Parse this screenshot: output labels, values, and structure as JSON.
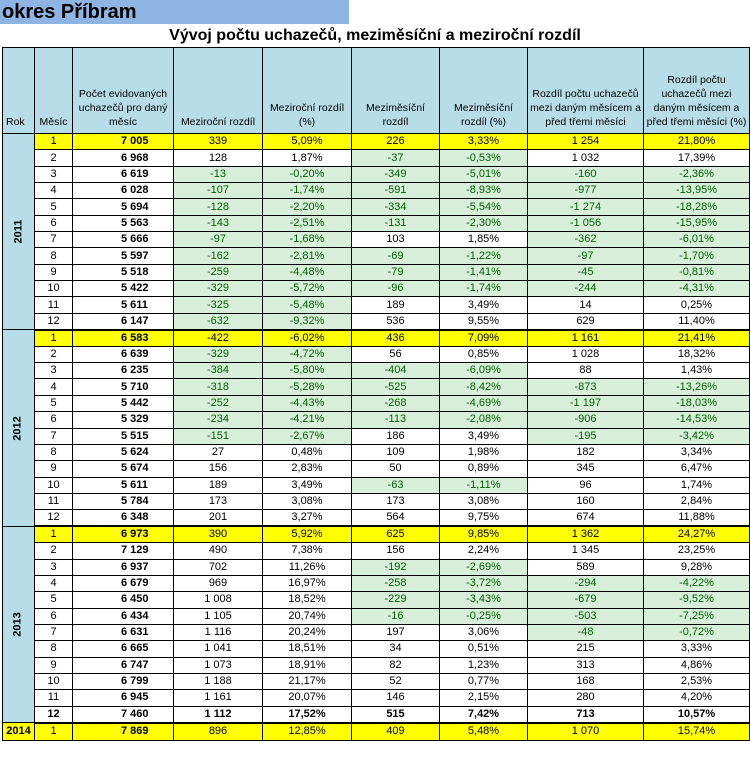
{
  "region_title": "okres Příbram",
  "title": "Vývoj počtu uchazečů, meziměsíční a meziroční rozdíl",
  "headers": {
    "rok": "Rok",
    "mesic": "Měsíc",
    "count": "Počet evidovaných uchazečů pro daný měsíc",
    "yoy": "Meziroční rozdíl",
    "yoy_pct": "Meziroční rozdíl (%)",
    "mom": "Meziměsíční rozdíl",
    "mom_pct": "Meziměsíční rozdíl (%)",
    "q3": "Rozdíl počtu uchazečů mezi daným měsícem a před třemi měsíci",
    "q3_pct": "Rozdíl počtu uchazečů mezi daným měsícem a před třemi měsíci (%)"
  },
  "colors": {
    "header_bg": "#b7dee8",
    "region_bg": "#8db4e2",
    "highlight_row": "#ffff00",
    "negative_bg": "#d8f0da",
    "negative_text": "#006100"
  },
  "years": [
    {
      "year": "2011",
      "rows": [
        [
          "1",
          "7 005",
          "339",
          "5,09%",
          "226",
          "3,33%",
          "1 254",
          "21,80%"
        ],
        [
          "2",
          "6 968",
          "128",
          "1,87%",
          "-37",
          "-0,53%",
          "1 032",
          "17,39%"
        ],
        [
          "3",
          "6 619",
          "-13",
          "-0,20%",
          "-349",
          "-5,01%",
          "-160",
          "-2,36%"
        ],
        [
          "4",
          "6 028",
          "-107",
          "-1,74%",
          "-591",
          "-8,93%",
          "-977",
          "-13,95%"
        ],
        [
          "5",
          "5 694",
          "-128",
          "-2,20%",
          "-334",
          "-5,54%",
          "-1 274",
          "-18,28%"
        ],
        [
          "6",
          "5 563",
          "-143",
          "-2,51%",
          "-131",
          "-2,30%",
          "-1 056",
          "-15,95%"
        ],
        [
          "7",
          "5 666",
          "-97",
          "-1,68%",
          "103",
          "1,85%",
          "-362",
          "-6,01%"
        ],
        [
          "8",
          "5 597",
          "-162",
          "-2,81%",
          "-69",
          "-1,22%",
          "-97",
          "-1,70%"
        ],
        [
          "9",
          "5 518",
          "-259",
          "-4,48%",
          "-79",
          "-1,41%",
          "-45",
          "-0,81%"
        ],
        [
          "10",
          "5 422",
          "-329",
          "-5,72%",
          "-96",
          "-1,74%",
          "-244",
          "-4,31%"
        ],
        [
          "11",
          "5 611",
          "-325",
          "-5,48%",
          "189",
          "3,49%",
          "14",
          "0,25%"
        ],
        [
          "12",
          "6 147",
          "-632",
          "-9,32%",
          "536",
          "9,55%",
          "629",
          "11,40%"
        ]
      ]
    },
    {
      "year": "2012",
      "rows": [
        [
          "1",
          "6 583",
          "-422",
          "-6,02%",
          "436",
          "7,09%",
          "1 161",
          "21,41%"
        ],
        [
          "2",
          "6 639",
          "-329",
          "-4,72%",
          "56",
          "0,85%",
          "1 028",
          "18,32%"
        ],
        [
          "3",
          "6 235",
          "-384",
          "-5,80%",
          "-404",
          "-6,09%",
          "88",
          "1,43%"
        ],
        [
          "4",
          "5 710",
          "-318",
          "-5,28%",
          "-525",
          "-8,42%",
          "-873",
          "-13,26%"
        ],
        [
          "5",
          "5 442",
          "-252",
          "-4,43%",
          "-268",
          "-4,69%",
          "-1 197",
          "-18,03%"
        ],
        [
          "6",
          "5 329",
          "-234",
          "-4,21%",
          "-113",
          "-2,08%",
          "-906",
          "-14,53%"
        ],
        [
          "7",
          "5 515",
          "-151",
          "-2,67%",
          "186",
          "3,49%",
          "-195",
          "-3,42%"
        ],
        [
          "8",
          "5 624",
          "27",
          "0,48%",
          "109",
          "1,98%",
          "182",
          "3,34%"
        ],
        [
          "9",
          "5 674",
          "156",
          "2,83%",
          "50",
          "0,89%",
          "345",
          "6,47%"
        ],
        [
          "10",
          "5 611",
          "189",
          "3,49%",
          "-63",
          "-1,11%",
          "96",
          "1,74%"
        ],
        [
          "11",
          "5 784",
          "173",
          "3,08%",
          "173",
          "3,08%",
          "160",
          "2,84%"
        ],
        [
          "12",
          "6 348",
          "201",
          "3,27%",
          "564",
          "9,75%",
          "674",
          "11,88%"
        ]
      ]
    },
    {
      "year": "2013",
      "rows": [
        [
          "1",
          "6 973",
          "390",
          "5,92%",
          "625",
          "9,85%",
          "1 362",
          "24,27%"
        ],
        [
          "2",
          "7 129",
          "490",
          "7,38%",
          "156",
          "2,24%",
          "1 345",
          "23,25%"
        ],
        [
          "3",
          "6 937",
          "702",
          "11,26%",
          "-192",
          "-2,69%",
          "589",
          "9,28%"
        ],
        [
          "4",
          "6 679",
          "969",
          "16,97%",
          "-258",
          "-3,72%",
          "-294",
          "-4,22%"
        ],
        [
          "5",
          "6 450",
          "1 008",
          "18,52%",
          "-229",
          "-3,43%",
          "-679",
          "-9,52%"
        ],
        [
          "6",
          "6 434",
          "1 105",
          "20,74%",
          "-16",
          "-0,25%",
          "-503",
          "-7,25%"
        ],
        [
          "7",
          "6 631",
          "1 116",
          "20,24%",
          "197",
          "3,06%",
          "-48",
          "-0,72%"
        ],
        [
          "8",
          "6 665",
          "1 041",
          "18,51%",
          "34",
          "0,51%",
          "215",
          "3,33%"
        ],
        [
          "9",
          "6 747",
          "1 073",
          "18,91%",
          "82",
          "1,23%",
          "313",
          "4,86%"
        ],
        [
          "10",
          "6 799",
          "1 188",
          "21,17%",
          "52",
          "0,77%",
          "168",
          "2,53%"
        ],
        [
          "11",
          "6 945",
          "1 161",
          "20,07%",
          "146",
          "2,15%",
          "280",
          "4,20%"
        ],
        [
          "12",
          "7 460",
          "1 112",
          "17,52%",
          "515",
          "7,42%",
          "713",
          "10,57%"
        ]
      ]
    },
    {
      "year": "2014",
      "rows": [
        [
          "1",
          "7 869",
          "896",
          "12,85%",
          "409",
          "5,48%",
          "1 070",
          "15,74%"
        ]
      ]
    }
  ]
}
